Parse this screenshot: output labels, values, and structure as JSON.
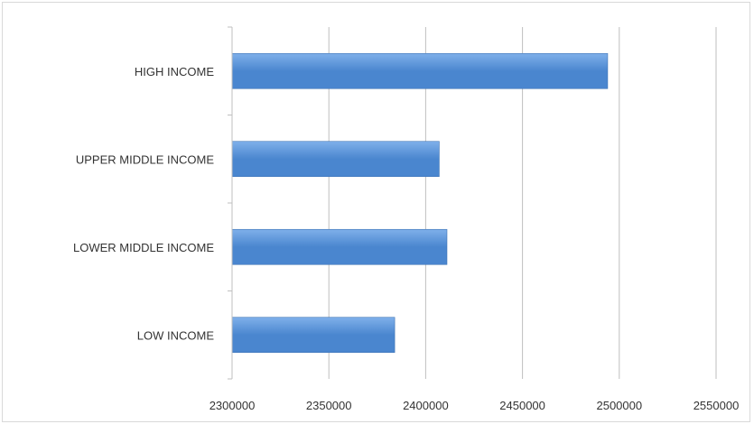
{
  "chart_data": {
    "type": "bar",
    "orientation": "horizontal",
    "categories": [
      "HIGH INCOME",
      "UPPER MIDDLE INCOME",
      "LOWER MIDDLE INCOME",
      "LOW INCOME"
    ],
    "values": [
      2494000,
      2407000,
      2411000,
      2384000
    ],
    "xlim": [
      2300000,
      2550000
    ],
    "x_ticks": [
      "2300000",
      "2350000",
      "2400000",
      "2450000",
      "2500000",
      "2550000"
    ],
    "title": "",
    "xlabel": "",
    "ylabel": "",
    "grid": "vertical",
    "legend": "none",
    "bar_color": "#4a86cf",
    "bar_color_light": "#7fb0ea",
    "grid_color": "#bfbfbf"
  }
}
